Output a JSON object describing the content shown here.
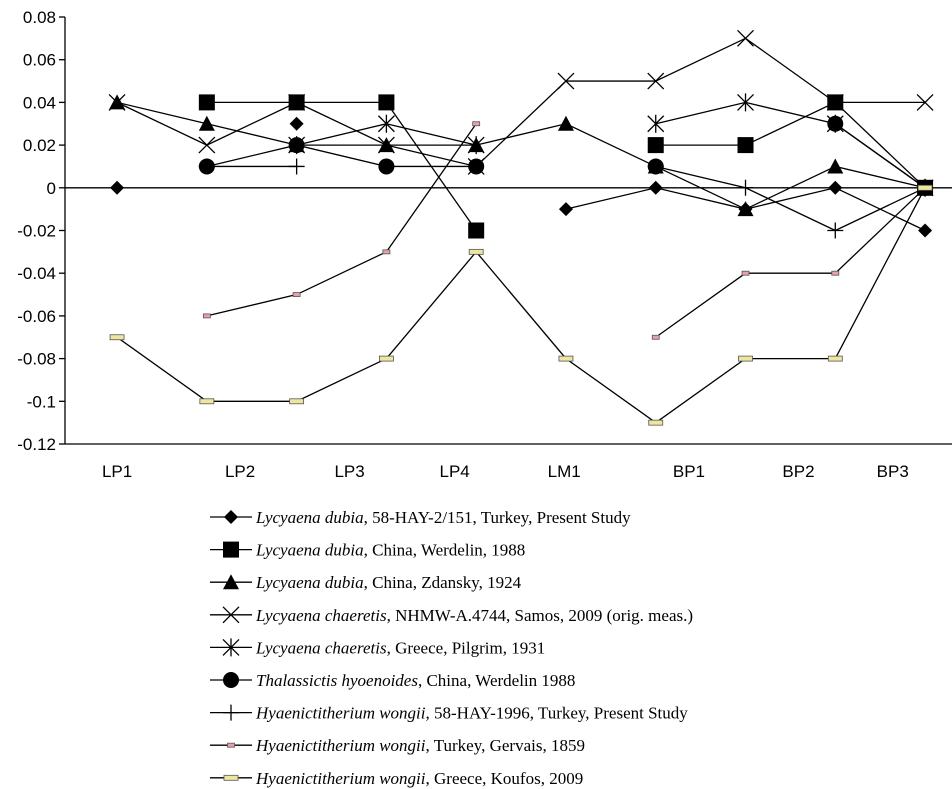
{
  "chart_data": {
    "type": "line",
    "x": [
      1,
      2,
      3,
      4,
      5,
      6,
      7,
      8,
      9,
      10
    ],
    "xlim": [
      0.42,
      10.3
    ],
    "xticks": [
      {
        "value": 1,
        "label": "LP1"
      },
      {
        "value": 2.37,
        "label": "LP2"
      },
      {
        "value": 3.59,
        "label": "LP3"
      },
      {
        "value": 4.76,
        "label": "LP4"
      },
      {
        "value": 5.98,
        "label": "LM1"
      },
      {
        "value": 7.37,
        "label": "BP1"
      },
      {
        "value": 8.59,
        "label": "BP2"
      },
      {
        "value": 9.64,
        "label": "BP3"
      }
    ],
    "ylim": [
      -0.12,
      0.08
    ],
    "yticks": [
      0.08,
      0.06,
      0.04,
      0.02,
      0,
      -0.02,
      -0.04,
      -0.06,
      -0.08,
      -0.1,
      -0.12
    ],
    "zero_line": true,
    "series": [
      {
        "name": "Lycyaena dubia, 58-HAY-2/151, Turkey, Present Study",
        "marker": "diamond",
        "color": "#000000",
        "values": [
          0,
          null,
          0.03,
          null,
          null,
          -0.01,
          0,
          -0.01,
          0,
          -0.02
        ]
      },
      {
        "name": "Lycyaena dubia, China, Werdelin, 1988",
        "marker": "square",
        "color": "#000000",
        "values": [
          null,
          0.04,
          0.04,
          0.04,
          -0.02,
          null,
          0.02,
          0.02,
          0.04,
          0
        ]
      },
      {
        "name": "Lycyaena dubia, China, Zdansky, 1924",
        "marker": "triangle",
        "color": "#000000",
        "values": [
          0.04,
          0.03,
          0.02,
          0.02,
          0.02,
          0.03,
          0.01,
          -0.01,
          0.01,
          0
        ]
      },
      {
        "name": "Lycyaena chaeretis, NHMW-A.4744, Samos, 2009 (orig. meas.)",
        "marker": "x",
        "color": "#000000",
        "values": [
          0.04,
          0.02,
          0.04,
          0.02,
          0.01,
          0.05,
          0.05,
          0.07,
          0.04,
          0.04
        ]
      },
      {
        "name": "Lycyaena chaeretis, Greece, Pilgrim, 1931",
        "marker": "asterisk",
        "color": "#000000",
        "values": [
          null,
          null,
          0.02,
          0.03,
          0.02,
          null,
          0.03,
          0.04,
          0.03,
          0
        ]
      },
      {
        "name": "Thalassictis hyoenoides, China, Werdelin 1988",
        "marker": "circle",
        "color": "#000000",
        "values": [
          null,
          0.01,
          0.02,
          0.01,
          0.01,
          null,
          0.01,
          null,
          0.03,
          0
        ]
      },
      {
        "name": "Hyaenictitherium wongii, 58-HAY-1996, Turkey, Present Study",
        "marker": "plus",
        "color": "#000000",
        "values": [
          null,
          0.01,
          0.01,
          null,
          null,
          null,
          0.01,
          0,
          -0.02,
          0
        ]
      },
      {
        "name": "Hyaenictitherium wongii, Turkey, Gervais, 1859",
        "marker": "smallrect",
        "color": "#e8a0aa",
        "values": [
          null,
          -0.06,
          -0.05,
          -0.03,
          0.03,
          null,
          -0.07,
          -0.04,
          -0.04,
          0
        ]
      },
      {
        "name": "Hyaenictitherium wongii, Greece, Koufos, 2009",
        "marker": "rect",
        "color": "#eee6a0",
        "values": [
          -0.07,
          -0.1,
          -0.1,
          -0.08,
          -0.03,
          -0.08,
          -0.11,
          -0.08,
          -0.08,
          0
        ]
      }
    ]
  }
}
